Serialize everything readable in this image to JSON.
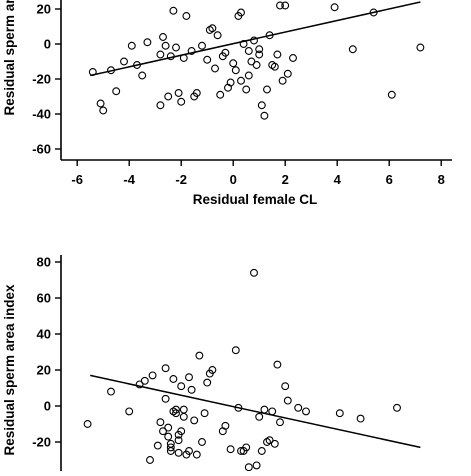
{
  "chart_data": [
    {
      "type": "scatter",
      "xlabel": "Residual female CL",
      "ylabel": "Residual sperm area index",
      "xlim": [
        -7,
        8.3
      ],
      "ylim": [
        -66,
        28
      ],
      "xticks": [
        -6,
        -4,
        -2,
        0,
        2,
        4,
        6,
        8
      ],
      "yticks": [
        -60,
        -40,
        -20,
        0,
        20
      ],
      "xtick_labels": [
        "-6",
        "-4",
        "-2",
        "0",
        "2",
        "4",
        "6",
        "8"
      ],
      "ytick_labels": [
        "-60",
        "-40",
        "-20",
        "0",
        "20"
      ],
      "grid": false,
      "trend_line": {
        "x": [
          -5.5,
          7.2
        ],
        "y": [
          -18,
          24
        ]
      },
      "series": [
        {
          "x": [
            -5.4,
            -5.1,
            -5.0,
            -4.7,
            -4.5,
            -4.2,
            -3.9,
            -3.7,
            -3.5,
            -3.3,
            -2.8,
            -2.8,
            -2.7,
            -2.6,
            -2.5,
            -2.4,
            -2.3,
            -2.2,
            -2.1,
            -2.0,
            -1.9,
            -1.8,
            -1.6,
            -1.5,
            -1.4,
            -1.2,
            -1.0,
            -0.9,
            -0.8,
            -0.7,
            -0.6,
            -0.5,
            -0.4,
            -0.3,
            -0.2,
            -0.1,
            0.0,
            0.1,
            0.2,
            0.3,
            0.3,
            0.4,
            0.5,
            0.6,
            0.6,
            0.7,
            0.8,
            0.9,
            1.0,
            1.0,
            1.1,
            1.2,
            1.3,
            1.4,
            1.5,
            1.6,
            1.7,
            1.8,
            1.9,
            2.0,
            2.1,
            2.3,
            3.9,
            4.6,
            5.4,
            6.1,
            7.2
          ],
          "y": [
            -16,
            -34,
            -38,
            -15,
            -27,
            -10,
            -1,
            -12,
            -18,
            1,
            -6,
            -35,
            4,
            -1,
            -30,
            -7,
            19,
            -2,
            -28,
            -33,
            -8,
            16,
            -4,
            -30,
            -28,
            -1,
            -9,
            8,
            9,
            -14,
            5,
            -29,
            -7,
            -5,
            -25,
            -22,
            -11,
            -15,
            16,
            -21,
            18,
            0,
            -26,
            -18,
            -4,
            -10,
            2,
            -12,
            -6,
            -3,
            -35,
            -41,
            -26,
            5,
            -12,
            -13,
            -6,
            22,
            -21,
            22,
            -17,
            -8,
            21,
            -3,
            18,
            -29,
            -2
          ]
        }
      ]
    },
    {
      "type": "scatter",
      "xlabel": "",
      "ylabel": "Residual sperm area index",
      "xlim": [
        -7,
        8.3
      ],
      "ylim": [
        -38,
        88
      ],
      "yticks": [
        -20,
        0,
        20,
        40,
        60,
        80
      ],
      "ytick_labels": [
        "-20",
        "0",
        "20",
        "40",
        "60",
        "80"
      ],
      "grid": false,
      "trend_line": {
        "x": [
          -5.5,
          7.2
        ],
        "y": [
          17,
          -23
        ]
      },
      "series": [
        {
          "x": [
            -5.6,
            -4.7,
            -4.0,
            -3.6,
            -3.4,
            -3.2,
            -3.1,
            -2.9,
            -2.8,
            -2.7,
            -2.6,
            -2.6,
            -2.5,
            -2.5,
            -2.4,
            -2.4,
            -2.4,
            -2.3,
            -2.3,
            -2.2,
            -2.2,
            -2.1,
            -2.1,
            -2.1,
            -2.0,
            -2.0,
            -1.9,
            -1.9,
            -1.8,
            -1.7,
            -1.7,
            -1.6,
            -1.5,
            -1.4,
            -1.3,
            -1.2,
            -1.1,
            -1.0,
            -0.9,
            -0.8,
            -0.4,
            -0.3,
            -0.1,
            0.1,
            0.2,
            0.3,
            0.4,
            0.5,
            0.6,
            0.8,
            0.9,
            1.0,
            1.1,
            1.2,
            1.3,
            1.4,
            1.5,
            1.6,
            1.7,
            1.8,
            2.0,
            2.1,
            2.5,
            2.8,
            4.1,
            4.9,
            6.3
          ],
          "y": [
            -10,
            8,
            -3,
            12,
            14,
            -30,
            17,
            -22,
            -9,
            -14,
            4,
            21,
            -12,
            -17,
            -21,
            -23,
            -25,
            15,
            -3,
            -4,
            -2,
            -26,
            -19,
            -16,
            11,
            -14,
            -2,
            -6,
            -27,
            16,
            -25,
            9,
            -8,
            -27,
            28,
            -20,
            -4,
            13,
            18,
            20,
            -14,
            -11,
            -24,
            31,
            -1,
            -25,
            -25,
            -23,
            -34,
            74,
            -33,
            -6,
            -25,
            -2,
            -20,
            -19,
            -3,
            -21,
            23,
            -9,
            11,
            3,
            -1,
            -3,
            -4,
            -7,
            -1
          ]
        }
      ]
    }
  ]
}
